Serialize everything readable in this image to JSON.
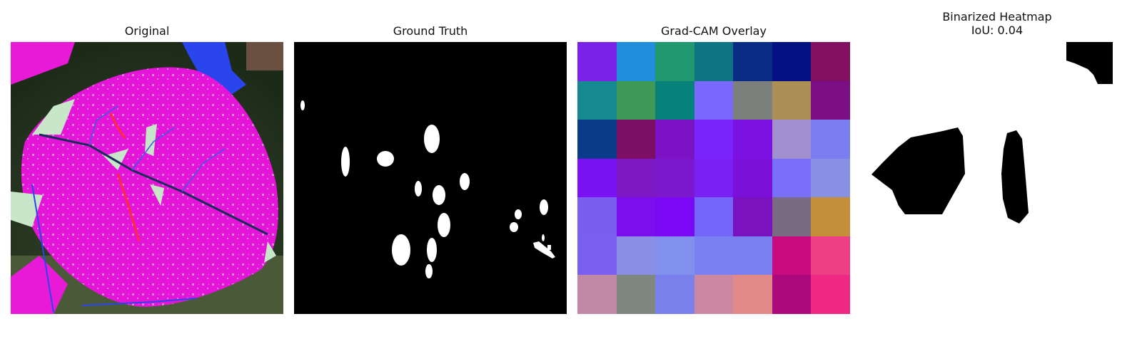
{
  "panels": {
    "original": {
      "title": "Original"
    },
    "ground_truth": {
      "title": "Ground Truth"
    },
    "gradcam": {
      "title": "Grad-CAM Overlay",
      "grid_colors": [
        [
          "#7a22e8",
          "#1f8fdc",
          "#229870",
          "#0e7484",
          "#0a2b86",
          "#031084",
          "#821060"
        ],
        [
          "#168890",
          "#3f9a58",
          "#06827a",
          "#7a68fc",
          "#7b807c",
          "#ac8f56",
          "#7c0e86"
        ],
        [
          "#0a3a8a",
          "#7c0e64",
          "#7b12c4",
          "#7a24fc",
          "#7b12e2",
          "#a090d0",
          "#7a7ef0"
        ],
        [
          "#7b12f4",
          "#7c18c4",
          "#7b18cc",
          "#7a20f4",
          "#7a10da",
          "#7a6efc",
          "#8890e4"
        ],
        [
          "#7a5ef0",
          "#7b0eec",
          "#7a08f4",
          "#7466f8",
          "#7a12c0",
          "#7a6a82",
          "#c48e3c"
        ],
        [
          "#7a60f0",
          "#8a8ee4",
          "#8090ec",
          "#7a80f0",
          "#7a80f0",
          "#c80c80",
          "#ee3e86"
        ],
        [
          "#c288a8",
          "#7e8880",
          "#7a80ec",
          "#cc88a0",
          "#e28a88",
          "#ac0a7c",
          "#ee2884"
        ]
      ]
    },
    "binarized": {
      "title_line1": "Binarized Heatmap",
      "title_line2": "IoU: 0.04"
    }
  }
}
